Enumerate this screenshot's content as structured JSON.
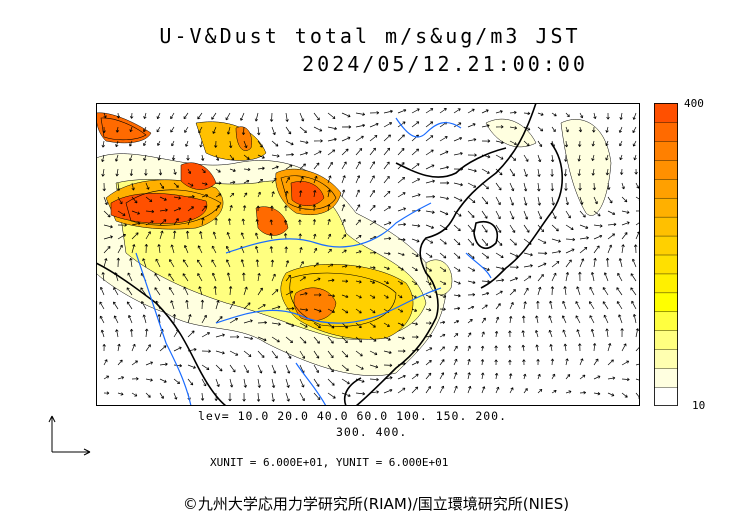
{
  "header": {
    "title": "U-V&Dust total m/s&ug/m3 JST",
    "datetime": "2024/05/12.21:00:00"
  },
  "colorbar": {
    "max_label": "400",
    "min_label": "10",
    "colors": [
      "#ffffff",
      "#ffffe0",
      "#ffffb0",
      "#ffff80",
      "#ffff40",
      "#ffff00",
      "#fff000",
      "#ffe000",
      "#ffd000",
      "#ffc000",
      "#ffb000",
      "#ffa000",
      "#ff9000",
      "#ff8000",
      "#ff6a00",
      "#ff5000"
    ]
  },
  "legend": {
    "levels_line1": "lev= 10.0 20.0 40.0 60.0 100. 150. 200.",
    "levels_line2": "300. 400.",
    "units": "XUNIT = 6.000E+01, YUNIT = 6.000E+01"
  },
  "footer": {
    "copyright": "©九州大学応用力学研究所(RIAM)/国立環境研究所(NIES)"
  },
  "map": {
    "background": "#ffffff",
    "coast_color": "#000000",
    "river_color": "#1a6cff"
  }
}
